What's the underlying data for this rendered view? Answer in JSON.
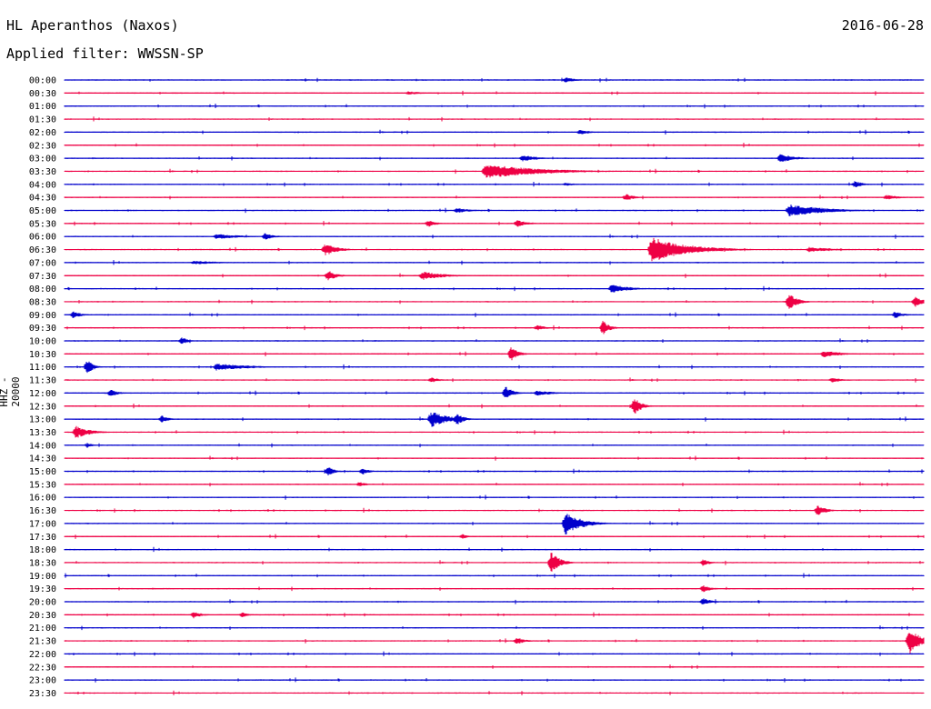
{
  "header": {
    "station": "HL Aperanthos (Naxos)",
    "date": "2016-06-28",
    "filter": "Applied filter: WWSSN-SP"
  },
  "colors": {
    "even_trace": "#0000cc",
    "odd_trace": "#ee0044",
    "background": "#ffffff"
  },
  "chart_data": {
    "type": "line",
    "title": "HL Aperanthos (Naxos)",
    "ylabel": "HHZ - 20000",
    "xlabel": "",
    "row_labels": [
      "00:00",
      "00:30",
      "01:00",
      "01:30",
      "02:00",
      "02:30",
      "03:00",
      "03:30",
      "04:00",
      "04:30",
      "05:00",
      "05:30",
      "06:00",
      "06:30",
      "07:00",
      "07:30",
      "08:00",
      "08:30",
      "09:00",
      "09:30",
      "10:00",
      "10:30",
      "11:00",
      "11:30",
      "12:00",
      "12:30",
      "13:00",
      "13:30",
      "14:00",
      "14:30",
      "15:00",
      "15:30",
      "16:00",
      "16:30",
      "17:00",
      "17:30",
      "18:00",
      "18:30",
      "19:00",
      "19:30",
      "20:00",
      "20:30",
      "21:00",
      "21:30",
      "22:00",
      "22:30",
      "23:00",
      "23:30"
    ],
    "row_minutes": 30,
    "series_colors": [
      "blue",
      "red"
    ],
    "grid": false,
    "events": [
      {
        "row": 0,
        "min": 17.5,
        "amp": 3,
        "dur": 0.6
      },
      {
        "row": 1,
        "min": 12.0,
        "amp": 2,
        "dur": 1.0
      },
      {
        "row": 4,
        "min": 18.0,
        "amp": 3,
        "dur": 0.6
      },
      {
        "row": 6,
        "min": 16.0,
        "amp": 4,
        "dur": 0.8
      },
      {
        "row": 6,
        "min": 25.0,
        "amp": 5,
        "dur": 0.8
      },
      {
        "row": 7,
        "min": 14.7,
        "amp": 8,
        "dur": 3.0
      },
      {
        "row": 8,
        "min": 17.5,
        "amp": 2,
        "dur": 0.6
      },
      {
        "row": 8,
        "min": 27.6,
        "amp": 4,
        "dur": 0.5
      },
      {
        "row": 9,
        "min": 19.6,
        "amp": 4,
        "dur": 0.5
      },
      {
        "row": 9,
        "min": 28.7,
        "amp": 3,
        "dur": 0.8
      },
      {
        "row": 10,
        "min": 13.7,
        "amp": 3,
        "dur": 0.8
      },
      {
        "row": 10,
        "min": 25.3,
        "amp": 7,
        "dur": 2.0
      },
      {
        "row": 11,
        "min": 12.7,
        "amp": 4,
        "dur": 0.5
      },
      {
        "row": 11,
        "min": 15.8,
        "amp": 4,
        "dur": 0.6
      },
      {
        "row": 12,
        "min": 5.3,
        "amp": 3,
        "dur": 1.5
      },
      {
        "row": 12,
        "min": 7.0,
        "amp": 4,
        "dur": 0.5
      },
      {
        "row": 13,
        "min": 9.1,
        "amp": 7,
        "dur": 0.7
      },
      {
        "row": 13,
        "min": 20.5,
        "amp": 14,
        "dur": 2.0
      },
      {
        "row": 13,
        "min": 26.0,
        "amp": 3,
        "dur": 1.5
      },
      {
        "row": 14,
        "min": 4.5,
        "amp": 2,
        "dur": 2.0
      },
      {
        "row": 15,
        "min": 9.2,
        "amp": 6,
        "dur": 0.5
      },
      {
        "row": 15,
        "min": 12.5,
        "amp": 5,
        "dur": 1.2
      },
      {
        "row": 16,
        "min": 19.1,
        "amp": 5,
        "dur": 1.0
      },
      {
        "row": 17,
        "min": 25.3,
        "amp": 9,
        "dur": 0.5
      },
      {
        "row": 17,
        "min": 29.7,
        "amp": 6,
        "dur": 0.5
      },
      {
        "row": 18,
        "min": 0.3,
        "amp": 4,
        "dur": 0.5
      },
      {
        "row": 18,
        "min": 29.0,
        "amp": 4,
        "dur": 0.5
      },
      {
        "row": 19,
        "min": 16.5,
        "amp": 3,
        "dur": 0.6
      },
      {
        "row": 19,
        "min": 18.8,
        "amp": 8,
        "dur": 0.4
      },
      {
        "row": 20,
        "min": 4.1,
        "amp": 4,
        "dur": 0.4
      },
      {
        "row": 21,
        "min": 15.6,
        "amp": 8,
        "dur": 0.4
      },
      {
        "row": 21,
        "min": 26.5,
        "amp": 4,
        "dur": 1.0
      },
      {
        "row": 22,
        "min": 0.8,
        "amp": 9,
        "dur": 0.3
      },
      {
        "row": 22,
        "min": 5.3,
        "amp": 4,
        "dur": 1.8
      },
      {
        "row": 23,
        "min": 12.8,
        "amp": 3,
        "dur": 0.5
      },
      {
        "row": 23,
        "min": 26.8,
        "amp": 3,
        "dur": 0.6
      },
      {
        "row": 24,
        "min": 1.6,
        "amp": 4,
        "dur": 0.5
      },
      {
        "row": 24,
        "min": 15.4,
        "amp": 8,
        "dur": 0.4
      },
      {
        "row": 24,
        "min": 16.5,
        "amp": 3,
        "dur": 1.0
      },
      {
        "row": 25,
        "min": 19.9,
        "amp": 10,
        "dur": 0.4
      },
      {
        "row": 26,
        "min": 3.4,
        "amp": 4,
        "dur": 0.4
      },
      {
        "row": 26,
        "min": 12.8,
        "amp": 9,
        "dur": 1.0
      },
      {
        "row": 26,
        "min": 13.7,
        "amp": 7,
        "dur": 0.4
      },
      {
        "row": 27,
        "min": 0.4,
        "amp": 7,
        "dur": 0.8
      },
      {
        "row": 28,
        "min": 0.8,
        "amp": 3,
        "dur": 0.3
      },
      {
        "row": 30,
        "min": 9.2,
        "amp": 5,
        "dur": 0.4
      },
      {
        "row": 30,
        "min": 10.4,
        "amp": 4,
        "dur": 0.4
      },
      {
        "row": 31,
        "min": 10.3,
        "amp": 3,
        "dur": 0.4
      },
      {
        "row": 33,
        "min": 26.3,
        "amp": 6,
        "dur": 0.5
      },
      {
        "row": 34,
        "min": 17.5,
        "amp": 13,
        "dur": 0.9
      },
      {
        "row": 35,
        "min": 13.9,
        "amp": 3,
        "dur": 0.3
      },
      {
        "row": 37,
        "min": 17.0,
        "amp": 12,
        "dur": 0.5
      },
      {
        "row": 37,
        "min": 22.3,
        "amp": 4,
        "dur": 0.4
      },
      {
        "row": 39,
        "min": 22.3,
        "amp": 4,
        "dur": 0.5
      },
      {
        "row": 40,
        "min": 22.3,
        "amp": 4,
        "dur": 0.5
      },
      {
        "row": 41,
        "min": 4.5,
        "amp": 4,
        "dur": 0.5
      },
      {
        "row": 41,
        "min": 6.2,
        "amp": 3,
        "dur": 0.4
      },
      {
        "row": 43,
        "min": 15.8,
        "amp": 4,
        "dur": 0.5
      },
      {
        "row": 43,
        "min": 29.5,
        "amp": 15,
        "dur": 0.6
      }
    ]
  }
}
